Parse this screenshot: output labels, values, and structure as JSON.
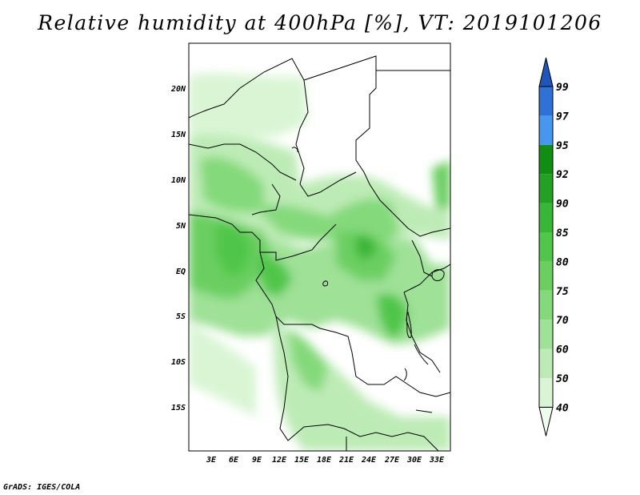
{
  "title": "Relative humidity at 400hPa [%], VT: 2019101206",
  "credit": "GrADS: IGES/COLA",
  "lat_labels": [
    "20N",
    "15N",
    "10N",
    "5N",
    "EQ",
    "5S",
    "10S",
    "15S"
  ],
  "lon_labels": [
    "3E",
    "6E",
    "9E",
    "12E",
    "15E",
    "18E",
    "21E",
    "24E",
    "27E",
    "30E",
    "33E"
  ],
  "colorbar": {
    "levels": [
      "40",
      "50",
      "60",
      "70",
      "75",
      "80",
      "85",
      "90",
      "92",
      "95",
      "97",
      "99"
    ],
    "colors": [
      "#f0fcee",
      "#d9f5d4",
      "#bdebb6",
      "#9fe197",
      "#84d97a",
      "#6acf60",
      "#50c64a",
      "#39b636",
      "#24a022",
      "#118d13",
      "#4897ee",
      "#2f72d6",
      "#1f56bd"
    ]
  }
}
